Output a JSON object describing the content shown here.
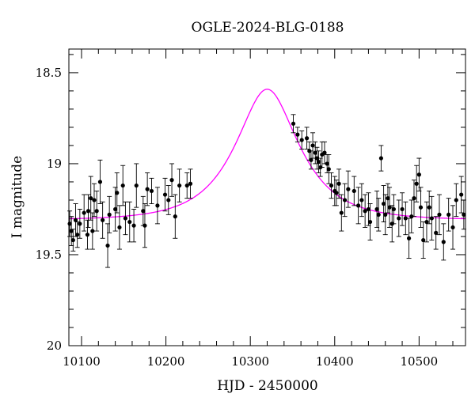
{
  "chart_data": {
    "type": "scatter",
    "title": "OGLE-2024-BLG-0188",
    "xlabel": "HJD - 2450000",
    "ylabel": "I magnitude",
    "xlim": [
      10085,
      10555
    ],
    "ylim": [
      20.0,
      18.37
    ],
    "y_inverted": true,
    "xticks": [
      10100,
      10200,
      10300,
      10400,
      10500
    ],
    "yticks": [
      18.5,
      19,
      19.5,
      20
    ],
    "ytick_labels": [
      "18.5",
      "19",
      "19.5",
      "20"
    ],
    "colors": {
      "data": "#000000",
      "model": "#ff00ff",
      "frame": "#000000"
    },
    "series": [
      {
        "kind": "data_with_errorbars",
        "points": [
          {
            "x": 10086,
            "y": 19.33,
            "err": 0.07
          },
          {
            "x": 10088,
            "y": 19.37,
            "err": 0.08
          },
          {
            "x": 10090,
            "y": 19.42,
            "err": 0.06
          },
          {
            "x": 10093,
            "y": 19.31,
            "err": 0.09
          },
          {
            "x": 10095,
            "y": 19.39,
            "err": 0.07
          },
          {
            "x": 10098,
            "y": 19.33,
            "err": 0.08
          },
          {
            "x": 10103,
            "y": 19.27,
            "err": 0.1
          },
          {
            "x": 10107,
            "y": 19.39,
            "err": 0.08
          },
          {
            "x": 10108,
            "y": 19.26,
            "err": 0.09
          },
          {
            "x": 10111,
            "y": 19.19,
            "err": 0.12
          },
          {
            "x": 10113,
            "y": 19.37,
            "err": 0.1
          },
          {
            "x": 10115,
            "y": 19.2,
            "err": 0.09
          },
          {
            "x": 10118,
            "y": 19.26,
            "err": 0.11
          },
          {
            "x": 10122,
            "y": 19.1,
            "err": 0.12
          },
          {
            "x": 10125,
            "y": 19.31,
            "err": 0.1
          },
          {
            "x": 10131,
            "y": 19.45,
            "err": 0.12
          },
          {
            "x": 10133,
            "y": 19.28,
            "err": 0.1
          },
          {
            "x": 10140,
            "y": 19.25,
            "err": 0.12
          },
          {
            "x": 10142,
            "y": 19.16,
            "err": 0.11
          },
          {
            "x": 10145,
            "y": 19.35,
            "err": 0.12
          },
          {
            "x": 10149,
            "y": 19.12,
            "err": 0.11
          },
          {
            "x": 10152,
            "y": 19.3,
            "err": 0.09
          },
          {
            "x": 10157,
            "y": 19.32,
            "err": 0.11
          },
          {
            "x": 10162,
            "y": 19.34,
            "err": 0.09
          },
          {
            "x": 10165,
            "y": 19.12,
            "err": 0.12
          },
          {
            "x": 10173,
            "y": 19.26,
            "err": 0.08
          },
          {
            "x": 10175,
            "y": 19.34,
            "err": 0.12
          },
          {
            "x": 10178,
            "y": 19.14,
            "err": 0.09
          },
          {
            "x": 10183,
            "y": 19.15,
            "err": 0.07
          },
          {
            "x": 10190,
            "y": 19.23,
            "err": 0.1
          },
          {
            "x": 10199,
            "y": 19.17,
            "err": 0.09
          },
          {
            "x": 10203,
            "y": 19.2,
            "err": 0.08
          },
          {
            "x": 10207,
            "y": 19.09,
            "err": 0.09
          },
          {
            "x": 10211,
            "y": 19.29,
            "err": 0.12
          },
          {
            "x": 10216,
            "y": 19.12,
            "err": 0.09
          },
          {
            "x": 10225,
            "y": 19.12,
            "err": 0.07
          },
          {
            "x": 10229,
            "y": 19.11,
            "err": 0.08
          },
          {
            "x": 10351,
            "y": 18.78,
            "err": 0.05
          },
          {
            "x": 10356,
            "y": 18.84,
            "err": 0.04
          },
          {
            "x": 10361,
            "y": 18.87,
            "err": 0.05
          },
          {
            "x": 10367,
            "y": 18.86,
            "err": 0.06
          },
          {
            "x": 10370,
            "y": 18.93,
            "err": 0.05
          },
          {
            "x": 10372,
            "y": 18.98,
            "err": 0.05
          },
          {
            "x": 10374,
            "y": 18.9,
            "err": 0.07
          },
          {
            "x": 10377,
            "y": 18.94,
            "err": 0.06
          },
          {
            "x": 10379,
            "y": 18.97,
            "err": 0.06
          },
          {
            "x": 10381,
            "y": 18.99,
            "err": 0.06
          },
          {
            "x": 10383,
            "y": 19.02,
            "err": 0.05
          },
          {
            "x": 10385,
            "y": 18.95,
            "err": 0.07
          },
          {
            "x": 10388,
            "y": 18.94,
            "err": 0.06
          },
          {
            "x": 10391,
            "y": 19.0,
            "err": 0.05
          },
          {
            "x": 10393,
            "y": 19.03,
            "err": 0.08
          },
          {
            "x": 10396,
            "y": 19.12,
            "err": 0.07
          },
          {
            "x": 10400,
            "y": 19.15,
            "err": 0.08
          },
          {
            "x": 10402,
            "y": 19.16,
            "err": 0.07
          },
          {
            "x": 10405,
            "y": 19.11,
            "err": 0.08
          },
          {
            "x": 10408,
            "y": 19.27,
            "err": 0.1
          },
          {
            "x": 10412,
            "y": 19.2,
            "err": 0.09
          },
          {
            "x": 10416,
            "y": 19.14,
            "err": 0.1
          },
          {
            "x": 10423,
            "y": 19.15,
            "err": 0.08
          },
          {
            "x": 10428,
            "y": 19.23,
            "err": 0.1
          },
          {
            "x": 10432,
            "y": 19.2,
            "err": 0.09
          },
          {
            "x": 10436,
            "y": 19.26,
            "err": 0.09
          },
          {
            "x": 10440,
            "y": 19.25,
            "err": 0.09
          },
          {
            "x": 10442,
            "y": 19.32,
            "err": 0.1
          },
          {
            "x": 10450,
            "y": 19.25,
            "err": 0.1
          },
          {
            "x": 10452,
            "y": 19.28,
            "err": 0.09
          },
          {
            "x": 10455,
            "y": 18.97,
            "err": 0.07
          },
          {
            "x": 10458,
            "y": 19.22,
            "err": 0.1
          },
          {
            "x": 10460,
            "y": 19.28,
            "err": 0.11
          },
          {
            "x": 10463,
            "y": 19.19,
            "err": 0.08
          },
          {
            "x": 10465,
            "y": 19.24,
            "err": 0.11
          },
          {
            "x": 10468,
            "y": 19.33,
            "err": 0.1
          },
          {
            "x": 10470,
            "y": 19.25,
            "err": 0.08
          },
          {
            "x": 10476,
            "y": 19.3,
            "err": 0.1
          },
          {
            "x": 10480,
            "y": 19.25,
            "err": 0.09
          },
          {
            "x": 10484,
            "y": 19.3,
            "err": 0.09
          },
          {
            "x": 10488,
            "y": 19.41,
            "err": 0.11
          },
          {
            "x": 10491,
            "y": 19.29,
            "err": 0.09
          },
          {
            "x": 10494,
            "y": 19.19,
            "err": 0.1
          },
          {
            "x": 10497,
            "y": 19.11,
            "err": 0.1
          },
          {
            "x": 10500,
            "y": 19.06,
            "err": 0.09
          },
          {
            "x": 10502,
            "y": 19.24,
            "err": 0.11
          },
          {
            "x": 10505,
            "y": 19.42,
            "err": 0.1
          },
          {
            "x": 10509,
            "y": 19.32,
            "err": 0.11
          },
          {
            "x": 10512,
            "y": 19.24,
            "err": 0.09
          },
          {
            "x": 10515,
            "y": 19.3,
            "err": 0.12
          },
          {
            "x": 10520,
            "y": 19.38,
            "err": 0.09
          },
          {
            "x": 10524,
            "y": 19.28,
            "err": 0.11
          },
          {
            "x": 10529,
            "y": 19.43,
            "err": 0.1
          },
          {
            "x": 10535,
            "y": 19.28,
            "err": 0.09
          },
          {
            "x": 10540,
            "y": 19.35,
            "err": 0.12
          },
          {
            "x": 10544,
            "y": 19.2,
            "err": 0.09
          },
          {
            "x": 10550,
            "y": 19.17,
            "err": 0.1
          },
          {
            "x": 10553,
            "y": 19.28,
            "err": 0.08
          }
        ]
      },
      {
        "kind": "model_curve",
        "peak_x": 10320,
        "peak_y": 18.63,
        "baseline_y": 19.31,
        "x_range": [
          10085,
          10555
        ]
      }
    ]
  }
}
